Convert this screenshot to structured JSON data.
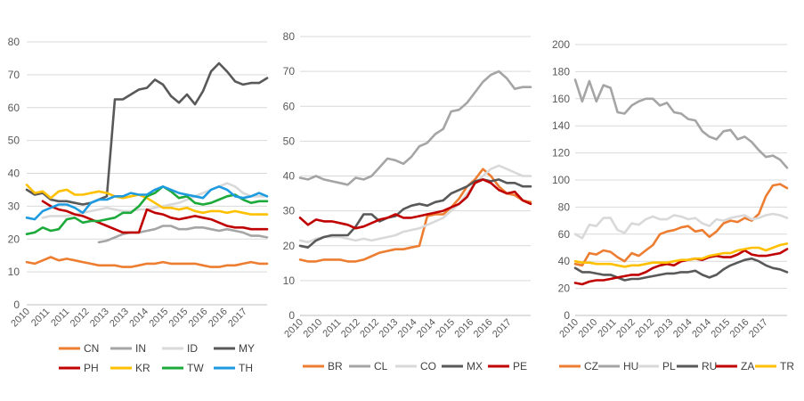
{
  "chart_data": [
    {
      "type": "line",
      "x_ticks": [
        "2010",
        "2011",
        "2011",
        "2012",
        "2013",
        "2013",
        "2014",
        "2015",
        "2015",
        "2016",
        "2016",
        "2017"
      ],
      "ylim": [
        0,
        80
      ],
      "y_ticks": [
        "0",
        "10",
        "20",
        "30",
        "40",
        "50",
        "60",
        "70",
        "80"
      ],
      "grid": true,
      "legend_position": "bottom",
      "colors": {
        "CN": "#ED7D31",
        "IN": "#A5A5A5",
        "ID": "#D9D9D9",
        "MY": "#595959",
        "PH": "#C00000",
        "KR": "#FFC000",
        "TW": "#1CAA3A",
        "TH": "#1E9BE0"
      },
      "series": [
        {
          "name": "CN",
          "values": [
            13,
            12.5,
            13.5,
            14.5,
            13.5,
            14,
            13.5,
            13,
            12.5,
            12,
            12,
            12,
            11.5,
            11.5,
            12,
            12.5,
            12.5,
            13,
            12.5,
            12.5,
            12.5,
            12.5,
            12,
            11.5,
            11.5,
            12,
            12,
            12.5,
            13,
            12.5,
            12.5
          ]
        },
        {
          "name": "IN",
          "values": [
            null,
            null,
            null,
            null,
            null,
            null,
            null,
            null,
            null,
            19,
            19.5,
            20.5,
            21.5,
            22,
            22,
            22.5,
            23,
            24,
            24,
            23,
            23,
            23.5,
            23.5,
            23,
            22.5,
            23,
            22.5,
            22,
            21,
            21,
            20.5
          ]
        },
        {
          "name": "ID",
          "values": [
            null,
            null,
            26.5,
            27,
            27,
            27,
            27.5,
            28,
            28.5,
            29,
            29.5,
            29,
            28.5,
            28.5,
            29,
            29,
            29.5,
            30,
            30.5,
            31,
            32,
            33,
            34,
            35,
            36,
            37,
            36,
            34,
            33,
            33,
            33
          ]
        },
        {
          "name": "MY",
          "values": [
            35,
            33.5,
            34,
            32,
            31.5,
            31.5,
            31,
            30.5,
            31,
            32,
            33,
            62.5,
            62.5,
            64,
            65.5,
            66,
            68.5,
            67,
            63.5,
            61.5,
            64,
            61,
            65,
            71,
            73.5,
            71,
            68,
            67,
            67.5,
            67.5,
            69
          ]
        },
        {
          "name": "PH",
          "values": [
            null,
            null,
            31.5,
            30,
            29,
            28.5,
            27.5,
            27,
            26,
            25,
            24,
            23,
            22,
            22,
            22,
            29,
            28,
            27.5,
            26.5,
            26,
            26.5,
            27,
            26.5,
            26,
            25,
            24,
            23.5,
            23.5,
            23,
            23,
            23
          ]
        },
        {
          "name": "KR",
          "values": [
            36.5,
            34,
            34.5,
            32.5,
            34.5,
            35,
            33.5,
            33.5,
            34,
            34.5,
            34,
            33,
            32.5,
            33,
            33.5,
            32.5,
            31,
            29.5,
            29.5,
            29,
            29.5,
            28.5,
            28,
            28.5,
            28.5,
            28,
            28.5,
            28,
            27.5,
            27.5,
            27.5
          ]
        },
        {
          "name": "TW",
          "values": [
            21.5,
            22,
            23.5,
            22.5,
            23,
            26,
            26.5,
            25,
            25.5,
            25.5,
            26,
            26.5,
            28,
            28,
            30,
            33,
            34,
            36,
            34.5,
            32.5,
            33,
            31,
            30.5,
            31,
            32,
            33,
            33.5,
            32,
            31,
            31.5,
            31.5
          ]
        },
        {
          "name": "TH",
          "values": [
            26.5,
            26,
            28.5,
            29.5,
            30.5,
            30.5,
            29.5,
            28,
            31,
            32,
            32,
            33,
            33,
            34,
            33.5,
            33.5,
            35,
            36,
            35,
            34,
            33.5,
            33,
            32.5,
            35,
            36,
            35,
            33,
            32.5,
            33,
            34,
            33
          ]
        }
      ]
    },
    {
      "type": "line",
      "x_ticks": [
        "2010",
        "2010",
        "2011",
        "2012",
        "2012",
        "2013",
        "2014",
        "2014",
        "2015",
        "2016",
        "2016",
        "2017"
      ],
      "ylim": [
        0,
        80
      ],
      "y_ticks": [
        "0",
        "10",
        "20",
        "30",
        "40",
        "50",
        "60",
        "70",
        "80"
      ],
      "grid": true,
      "legend_position": "bottom",
      "colors": {
        "BR": "#ED7D31",
        "CL": "#A5A5A5",
        "CO": "#D9D9D9",
        "MX": "#595959",
        "PE": "#C00000"
      },
      "series": [
        {
          "name": "BR",
          "values": [
            16,
            15.5,
            15.5,
            16,
            16,
            16,
            15.5,
            15.5,
            16,
            17,
            18,
            18.5,
            19,
            19,
            19.5,
            20,
            28.5,
            29,
            29,
            31,
            33.5,
            37,
            39,
            42,
            40,
            37,
            35,
            34.5,
            33,
            32.5
          ]
        },
        {
          "name": "CL",
          "values": [
            39.5,
            39,
            40,
            39,
            38.5,
            38,
            37.5,
            39.5,
            39,
            40,
            42.5,
            45,
            44.5,
            43.5,
            45.5,
            48.5,
            49.5,
            52,
            53.5,
            58.5,
            59,
            61,
            64,
            67,
            69,
            70,
            68,
            65,
            65.5,
            65.5
          ]
        },
        {
          "name": "CO",
          "values": [
            21.5,
            21,
            22,
            22.5,
            22.5,
            22.5,
            22,
            21.5,
            22,
            21.5,
            22,
            22.5,
            23,
            24,
            24.5,
            25,
            26,
            27,
            28,
            30,
            32,
            35,
            38,
            40,
            42,
            43,
            42,
            41,
            40,
            40
          ]
        },
        {
          "name": "MX",
          "values": [
            20,
            19.5,
            21.5,
            22.5,
            23,
            23,
            23,
            25.5,
            29,
            29,
            27,
            28,
            28.5,
            30.5,
            31.5,
            32,
            31.5,
            32.5,
            33,
            35,
            36,
            37,
            38.5,
            39,
            38.5,
            39,
            38,
            38,
            37,
            37
          ]
        },
        {
          "name": "PE",
          "values": [
            28,
            26,
            27.5,
            27,
            27,
            26.5,
            26,
            25,
            25.5,
            26.5,
            27.5,
            28,
            29,
            28,
            28,
            28.5,
            29,
            29.5,
            30,
            31,
            32,
            34,
            38,
            39,
            38,
            36,
            35,
            35.5,
            33,
            32
          ]
        }
      ]
    },
    {
      "type": "line",
      "x_ticks": [
        "2010",
        "2010",
        "2011",
        "2012",
        "2012",
        "2013",
        "2014",
        "2014",
        "2015",
        "2016",
        "2017"
      ],
      "ylim": [
        0,
        200
      ],
      "y_ticks": [
        "0",
        "20",
        "40",
        "60",
        "80",
        "100",
        "120",
        "140",
        "160",
        "180",
        "200"
      ],
      "grid": true,
      "legend_position": "bottom",
      "colors": {
        "CZ": "#ED7D31",
        "HU": "#A5A5A5",
        "PL": "#D9D9D9",
        "RU": "#595959",
        "ZA": "#C00000",
        "TR": "#FFC000"
      },
      "series": [
        {
          "name": "CZ",
          "values": [
            38,
            37,
            46,
            45,
            48,
            47,
            43,
            40,
            46,
            44,
            48,
            52,
            60,
            62,
            63,
            65,
            66,
            62,
            63,
            58,
            62,
            68,
            70,
            69,
            72,
            70,
            75,
            88,
            96,
            97,
            94
          ]
        },
        {
          "name": "HU",
          "values": [
            174,
            158,
            173,
            158,
            170,
            168,
            150,
            149,
            155,
            158,
            160,
            160,
            155,
            157,
            150,
            149,
            145,
            144,
            136,
            132,
            130,
            136,
            137,
            130,
            132,
            128,
            122,
            117,
            118,
            115,
            109
          ]
        },
        {
          "name": "PL",
          "values": [
            60,
            57,
            67,
            66,
            72,
            72,
            63,
            61,
            68,
            67,
            71,
            73,
            71,
            71,
            74,
            73,
            71,
            72,
            68,
            66,
            71,
            70,
            72,
            73,
            74,
            71,
            72,
            74,
            75,
            74,
            72
          ]
        },
        {
          "name": "RU",
          "values": [
            35,
            32,
            32,
            31,
            30,
            30,
            28,
            26,
            27,
            27,
            28,
            29,
            30,
            31,
            31,
            32,
            32,
            33,
            30,
            28,
            30,
            34,
            37,
            39,
            41,
            42,
            40,
            37,
            35,
            34,
            32
          ]
        },
        {
          "name": "ZA",
          "values": [
            24,
            23,
            25,
            26,
            26,
            27,
            28,
            29,
            30,
            30,
            32,
            35,
            37,
            38,
            37,
            40,
            41,
            42,
            41,
            43,
            44,
            43,
            43,
            45,
            48,
            45,
            44,
            44,
            45,
            46,
            49
          ]
        },
        {
          "name": "TR",
          "values": [
            40,
            39,
            39,
            38,
            38,
            38,
            37,
            36,
            37,
            37,
            38,
            39,
            39,
            39,
            40,
            41,
            41,
            42,
            42,
            44,
            45,
            46,
            46,
            48,
            49,
            50,
            50,
            48,
            50,
            52,
            53
          ]
        }
      ]
    }
  ],
  "legend": [
    {
      "rows": [
        [
          "CN",
          "IN",
          "ID",
          "MY"
        ],
        [
          "PH",
          "KR",
          "TW",
          "TH"
        ]
      ]
    },
    {
      "rows": [
        [
          "BR",
          "CL",
          "CO",
          "MX",
          "PE"
        ]
      ]
    },
    {
      "rows": [
        [
          "CZ",
          "HU",
          "PL",
          "RU",
          "ZA",
          "TR"
        ]
      ]
    }
  ]
}
